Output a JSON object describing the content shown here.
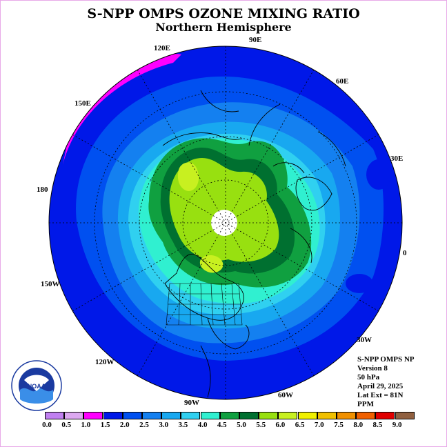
{
  "title": "S-NPP OMPS OZONE MIXING RATIO",
  "subtitle": "Northern Hemisphere",
  "longitude_labels": [
    {
      "id": "lon-90e",
      "text": "90E"
    },
    {
      "id": "lon-60e",
      "text": "60E"
    },
    {
      "id": "lon-30e",
      "text": "30E"
    },
    {
      "id": "lon-0",
      "text": "0"
    },
    {
      "id": "lon-30w",
      "text": "30W"
    },
    {
      "id": "lon-60w",
      "text": "60W"
    },
    {
      "id": "lon-90w",
      "text": "90W"
    },
    {
      "id": "lon-120w",
      "text": "120W"
    },
    {
      "id": "lon-150w",
      "text": "150W"
    },
    {
      "id": "lon-180",
      "text": "180"
    },
    {
      "id": "lon-150e",
      "text": "150E"
    },
    {
      "id": "lon-120e",
      "text": "120E"
    }
  ],
  "info": {
    "product": "S-NPP OMPS NP",
    "version": "Version 8",
    "level": "50 hPa",
    "date": "April 29, 2025",
    "lat_ext": "Lat Ext = 81N",
    "units": "PPM"
  },
  "logo": {
    "text": "NOAA",
    "icon": "noaa-logo-icon"
  },
  "colorbar": {
    "ticks": [
      "0.0",
      "0.5",
      "1.0",
      "1.5",
      "2.0",
      "2.5",
      "3.0",
      "3.5",
      "4.0",
      "4.5",
      "5.0",
      "5.5",
      "6.0",
      "6.5",
      "7.0",
      "7.5",
      "8.0",
      "8.5",
      "9.0"
    ],
    "colors": [
      "#c080f0",
      "#dca8f0",
      "#ff00ff",
      "#0018e8",
      "#0050f0",
      "#1480f0",
      "#18a8f0",
      "#30d0f0",
      "#30f0d0",
      "#10a040",
      "#007030",
      "#98e010",
      "#c8f020",
      "#f0f000",
      "#f0c000",
      "#f09000",
      "#f06000",
      "#e00000",
      "#906040"
    ]
  },
  "colors": {
    "frame": "#e8a8e8",
    "ocean_outer": "#0018e8",
    "polar_gap": "#ffffff"
  }
}
